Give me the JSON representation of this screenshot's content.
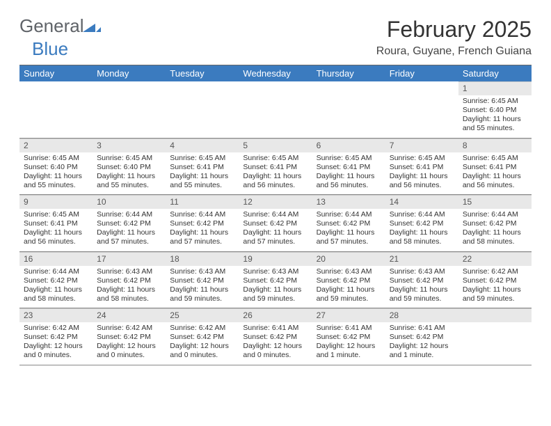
{
  "brand": {
    "word1": "General",
    "word2": "Blue"
  },
  "header": {
    "title": "February 2025",
    "subtitle": "Roura, Guyane, French Guiana"
  },
  "colors": {
    "header_bg": "#3b7bbf",
    "header_fg": "#ffffff",
    "daynum_bg": "#e8e8e8"
  },
  "day_names": [
    "Sunday",
    "Monday",
    "Tuesday",
    "Wednesday",
    "Thursday",
    "Friday",
    "Saturday"
  ],
  "weeks": [
    [
      null,
      null,
      null,
      null,
      null,
      null,
      {
        "n": "1",
        "sr": "Sunrise: 6:45 AM",
        "ss": "Sunset: 6:40 PM",
        "dl": "Daylight: 11 hours and 55 minutes."
      }
    ],
    [
      {
        "n": "2",
        "sr": "Sunrise: 6:45 AM",
        "ss": "Sunset: 6:40 PM",
        "dl": "Daylight: 11 hours and 55 minutes."
      },
      {
        "n": "3",
        "sr": "Sunrise: 6:45 AM",
        "ss": "Sunset: 6:40 PM",
        "dl": "Daylight: 11 hours and 55 minutes."
      },
      {
        "n": "4",
        "sr": "Sunrise: 6:45 AM",
        "ss": "Sunset: 6:41 PM",
        "dl": "Daylight: 11 hours and 55 minutes."
      },
      {
        "n": "5",
        "sr": "Sunrise: 6:45 AM",
        "ss": "Sunset: 6:41 PM",
        "dl": "Daylight: 11 hours and 56 minutes."
      },
      {
        "n": "6",
        "sr": "Sunrise: 6:45 AM",
        "ss": "Sunset: 6:41 PM",
        "dl": "Daylight: 11 hours and 56 minutes."
      },
      {
        "n": "7",
        "sr": "Sunrise: 6:45 AM",
        "ss": "Sunset: 6:41 PM",
        "dl": "Daylight: 11 hours and 56 minutes."
      },
      {
        "n": "8",
        "sr": "Sunrise: 6:45 AM",
        "ss": "Sunset: 6:41 PM",
        "dl": "Daylight: 11 hours and 56 minutes."
      }
    ],
    [
      {
        "n": "9",
        "sr": "Sunrise: 6:45 AM",
        "ss": "Sunset: 6:41 PM",
        "dl": "Daylight: 11 hours and 56 minutes."
      },
      {
        "n": "10",
        "sr": "Sunrise: 6:44 AM",
        "ss": "Sunset: 6:42 PM",
        "dl": "Daylight: 11 hours and 57 minutes."
      },
      {
        "n": "11",
        "sr": "Sunrise: 6:44 AM",
        "ss": "Sunset: 6:42 PM",
        "dl": "Daylight: 11 hours and 57 minutes."
      },
      {
        "n": "12",
        "sr": "Sunrise: 6:44 AM",
        "ss": "Sunset: 6:42 PM",
        "dl": "Daylight: 11 hours and 57 minutes."
      },
      {
        "n": "13",
        "sr": "Sunrise: 6:44 AM",
        "ss": "Sunset: 6:42 PM",
        "dl": "Daylight: 11 hours and 57 minutes."
      },
      {
        "n": "14",
        "sr": "Sunrise: 6:44 AM",
        "ss": "Sunset: 6:42 PM",
        "dl": "Daylight: 11 hours and 58 minutes."
      },
      {
        "n": "15",
        "sr": "Sunrise: 6:44 AM",
        "ss": "Sunset: 6:42 PM",
        "dl": "Daylight: 11 hours and 58 minutes."
      }
    ],
    [
      {
        "n": "16",
        "sr": "Sunrise: 6:44 AM",
        "ss": "Sunset: 6:42 PM",
        "dl": "Daylight: 11 hours and 58 minutes."
      },
      {
        "n": "17",
        "sr": "Sunrise: 6:43 AM",
        "ss": "Sunset: 6:42 PM",
        "dl": "Daylight: 11 hours and 58 minutes."
      },
      {
        "n": "18",
        "sr": "Sunrise: 6:43 AM",
        "ss": "Sunset: 6:42 PM",
        "dl": "Daylight: 11 hours and 59 minutes."
      },
      {
        "n": "19",
        "sr": "Sunrise: 6:43 AM",
        "ss": "Sunset: 6:42 PM",
        "dl": "Daylight: 11 hours and 59 minutes."
      },
      {
        "n": "20",
        "sr": "Sunrise: 6:43 AM",
        "ss": "Sunset: 6:42 PM",
        "dl": "Daylight: 11 hours and 59 minutes."
      },
      {
        "n": "21",
        "sr": "Sunrise: 6:43 AM",
        "ss": "Sunset: 6:42 PM",
        "dl": "Daylight: 11 hours and 59 minutes."
      },
      {
        "n": "22",
        "sr": "Sunrise: 6:42 AM",
        "ss": "Sunset: 6:42 PM",
        "dl": "Daylight: 11 hours and 59 minutes."
      }
    ],
    [
      {
        "n": "23",
        "sr": "Sunrise: 6:42 AM",
        "ss": "Sunset: 6:42 PM",
        "dl": "Daylight: 12 hours and 0 minutes."
      },
      {
        "n": "24",
        "sr": "Sunrise: 6:42 AM",
        "ss": "Sunset: 6:42 PM",
        "dl": "Daylight: 12 hours and 0 minutes."
      },
      {
        "n": "25",
        "sr": "Sunrise: 6:42 AM",
        "ss": "Sunset: 6:42 PM",
        "dl": "Daylight: 12 hours and 0 minutes."
      },
      {
        "n": "26",
        "sr": "Sunrise: 6:41 AM",
        "ss": "Sunset: 6:42 PM",
        "dl": "Daylight: 12 hours and 0 minutes."
      },
      {
        "n": "27",
        "sr": "Sunrise: 6:41 AM",
        "ss": "Sunset: 6:42 PM",
        "dl": "Daylight: 12 hours and 1 minute."
      },
      {
        "n": "28",
        "sr": "Sunrise: 6:41 AM",
        "ss": "Sunset: 6:42 PM",
        "dl": "Daylight: 12 hours and 1 minute."
      },
      null
    ]
  ]
}
